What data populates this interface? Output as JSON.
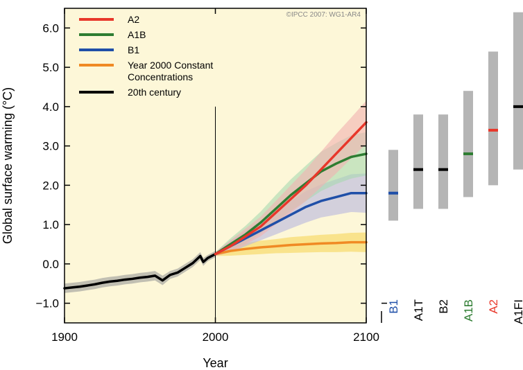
{
  "chart_data": {
    "type": "line",
    "xlabel": "Year",
    "ylabel": "Global surface warming (°C)",
    "copyright": "©IPCC  2007: WG1-AR4",
    "xlim": [
      1900,
      2100
    ],
    "ylim": [
      -1.5,
      6.5
    ],
    "x_ticks": [
      "1900",
      "2000",
      "2100"
    ],
    "y_ticks": [
      "6.0",
      "5.0",
      "4.0",
      "3.0",
      "2.0",
      "1.0",
      "0.0",
      "−1.0"
    ],
    "x_tick_values": [
      1900,
      2000,
      2100
    ],
    "y_tick_values": [
      6,
      5,
      4,
      3,
      2,
      1,
      0,
      -1
    ],
    "background_color": "#fdf7d8",
    "reference_line_x": 2000,
    "legend_placement": "top-left",
    "legend": [
      {
        "label": "A2",
        "color": "#e8372a"
      },
      {
        "label": "A1B",
        "color": "#2e7d32"
      },
      {
        "label": "B1",
        "color": "#1f4fa8"
      },
      {
        "label": "Year 2000 Constant\nConcentrations",
        "color": "#f08a24"
      },
      {
        "label": "20th century",
        "color": "#000000"
      }
    ],
    "series": [
      {
        "name": "20th century",
        "color": "#000000",
        "band_color": "#999999",
        "x": [
          1900,
          1905,
          1910,
          1915,
          1920,
          1925,
          1930,
          1935,
          1940,
          1945,
          1950,
          1955,
          1960,
          1965,
          1970,
          1975,
          1980,
          1985,
          1990,
          1992,
          1995,
          2000
        ],
        "y": [
          -0.62,
          -0.6,
          -0.58,
          -0.55,
          -0.52,
          -0.48,
          -0.45,
          -0.43,
          -0.4,
          -0.38,
          -0.35,
          -0.33,
          -0.3,
          -0.42,
          -0.28,
          -0.22,
          -0.1,
          0.02,
          0.2,
          0.05,
          0.15,
          0.25
        ],
        "band": [
          0.12,
          0.12,
          0.12,
          0.12,
          0.12,
          0.12,
          0.12,
          0.12,
          0.12,
          0.12,
          0.12,
          0.12,
          0.12,
          0.12,
          0.1,
          0.1,
          0.1,
          0.1,
          0.1,
          0.1,
          0.08,
          0.08
        ]
      },
      {
        "name": "Year 2000 Constant\nConcentrations",
        "color": "#f08a24",
        "band_color": "#f7d55a",
        "x": [
          2000,
          2010,
          2020,
          2030,
          2040,
          2050,
          2060,
          2070,
          2080,
          2090,
          2100
        ],
        "y": [
          0.25,
          0.33,
          0.38,
          0.42,
          0.45,
          0.48,
          0.5,
          0.52,
          0.53,
          0.55,
          0.55
        ],
        "band": [
          0.05,
          0.12,
          0.15,
          0.17,
          0.18,
          0.2,
          0.21,
          0.22,
          0.23,
          0.24,
          0.25
        ]
      },
      {
        "name": "B1",
        "color": "#1f4fa8",
        "band_color": "#b8b6e0",
        "x": [
          2000,
          2010,
          2020,
          2030,
          2040,
          2050,
          2060,
          2070,
          2080,
          2090,
          2100
        ],
        "y": [
          0.25,
          0.45,
          0.65,
          0.85,
          1.05,
          1.25,
          1.45,
          1.6,
          1.7,
          1.8,
          1.8
        ],
        "band": [
          0.05,
          0.15,
          0.2,
          0.25,
          0.3,
          0.35,
          0.4,
          0.42,
          0.45,
          0.48,
          0.5
        ]
      },
      {
        "name": "A1B",
        "color": "#2e7d32",
        "band_color": "#a9d8b0",
        "x": [
          2000,
          2010,
          2020,
          2030,
          2040,
          2050,
          2060,
          2070,
          2080,
          2090,
          2100
        ],
        "y": [
          0.25,
          0.5,
          0.75,
          1.05,
          1.4,
          1.75,
          2.05,
          2.35,
          2.55,
          2.72,
          2.8
        ],
        "band": [
          0.05,
          0.15,
          0.22,
          0.28,
          0.35,
          0.4,
          0.45,
          0.5,
          0.52,
          0.55,
          0.55
        ]
      },
      {
        "name": "A2",
        "color": "#e8372a",
        "band_color": "#f2b0b0",
        "x": [
          2000,
          2010,
          2020,
          2030,
          2040,
          2050,
          2060,
          2070,
          2080,
          2090,
          2100
        ],
        "y": [
          0.25,
          0.45,
          0.7,
          0.95,
          1.3,
          1.65,
          2.0,
          2.4,
          2.8,
          3.2,
          3.6
        ],
        "band": [
          0.05,
          0.15,
          0.2,
          0.25,
          0.3,
          0.35,
          0.4,
          0.45,
          0.5,
          0.52,
          0.55
        ]
      }
    ],
    "scenario_ranges": [
      {
        "name": "B1",
        "color": "#1f4fa8",
        "low": 1.1,
        "high": 2.9,
        "best": 1.8
      },
      {
        "name": "A1T",
        "color": "#000000",
        "low": 1.4,
        "high": 3.8,
        "best": 2.4
      },
      {
        "name": "B2",
        "color": "#000000",
        "low": 1.4,
        "high": 3.8,
        "best": 2.4
      },
      {
        "name": "A1B",
        "color": "#2e7d32",
        "low": 1.7,
        "high": 4.4,
        "best": 2.8
      },
      {
        "name": "A2",
        "color": "#e8372a",
        "low": 2.0,
        "high": 5.4,
        "best": 3.4
      },
      {
        "name": "A1FI",
        "color": "#000000",
        "low": 2.4,
        "high": 6.4,
        "best": 4.0
      }
    ]
  }
}
